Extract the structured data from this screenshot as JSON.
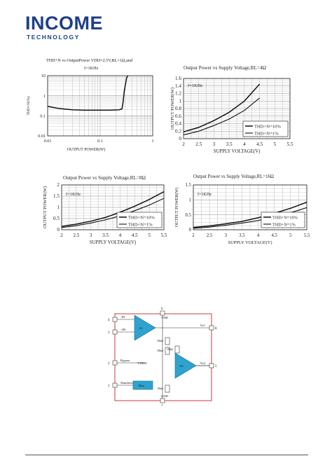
{
  "header": {
    "logo_main": "INCOME",
    "logo_sub": "TECHNOLOGY"
  },
  "chart_data": [
    {
      "type": "line",
      "title_lines": [
        "THD+N vs OutputPower VDD=2.5V,RL=1Ω,and",
        "f=1KHz"
      ],
      "xlabel": "OUTPUT POWER(W)",
      "ylabel": "THD+N(%)",
      "xscale": "log",
      "yscale": "log",
      "xlim": [
        0.01,
        1
      ],
      "ylim": [
        0.01,
        10
      ],
      "xticks": [
        "0.01",
        "0.1",
        "1"
      ],
      "yticks": [
        "10",
        "1",
        "0.1",
        "0.01"
      ],
      "grid": true,
      "series": [
        {
          "x": [
            0.01,
            0.012,
            0.015,
            0.02,
            0.03,
            0.05,
            0.08,
            0.15,
            0.23,
            0.26,
            0.27,
            0.29,
            0.32,
            0.35
          ],
          "y": [
            0.3,
            0.27,
            0.24,
            0.22,
            0.2,
            0.19,
            0.19,
            0.19,
            0.2,
            0.22,
            0.4,
            2.0,
            8.0,
            12.0
          ]
        }
      ]
    },
    {
      "type": "line",
      "title": "Output Power vs Supply Voltage,RL=4Ω",
      "xlabel": "SUPPLY VOLTAGE(V)",
      "ylabel": "OUTPUT POWER(W)",
      "xlim": [
        2,
        5.5
      ],
      "ylim": [
        0,
        1.6
      ],
      "xticks": [
        "2",
        "2.5",
        "3",
        "3.5",
        "4",
        "4.5",
        "5",
        "5.5"
      ],
      "yticks": [
        "1.6",
        "1.4",
        "1.2",
        "1",
        "0.8",
        "0.6",
        "0.4",
        "0.2",
        "0"
      ],
      "annotation": "f=1KHz",
      "grid": true,
      "legend_position": "bottom-right",
      "series": [
        {
          "name": "THD+N=10%",
          "x": [
            2,
            2.5,
            3,
            3.5,
            4,
            4.5
          ],
          "y": [
            0.18,
            0.3,
            0.48,
            0.7,
            1.0,
            1.45
          ]
        },
        {
          "name": "THD+N=1%",
          "x": [
            2,
            2.5,
            3,
            3.5,
            4,
            4.5
          ],
          "y": [
            0.1,
            0.2,
            0.35,
            0.52,
            0.75,
            1.08
          ]
        }
      ]
    },
    {
      "type": "line",
      "title": "Output Power vs Supply Voltage,RL=8Ω",
      "xlabel": "SUPPLY VOLTAGE(V)",
      "ylabel": "OUTPUT POWER(W)",
      "xlim": [
        2,
        5.5
      ],
      "ylim": [
        0,
        2
      ],
      "xticks": [
        "2",
        "2.5",
        "3",
        "3.5",
        "4",
        "4.5",
        "5",
        "5.5"
      ],
      "yticks": [
        "2",
        "1.5",
        "1",
        "0.5",
        "0"
      ],
      "annotation": "f=1KHz",
      "grid": true,
      "legend_position": "bottom-right",
      "series": [
        {
          "name": "THD+N=10%",
          "x": [
            2,
            2.5,
            3,
            3.5,
            4,
            4.5,
            5,
            5.5
          ],
          "y": [
            0.15,
            0.25,
            0.38,
            0.55,
            0.78,
            1.05,
            1.35,
            1.7
          ]
        },
        {
          "name": "THD+N=1%",
          "x": [
            2,
            2.5,
            3,
            3.5,
            4,
            4.5,
            5,
            5.5
          ],
          "y": [
            0.1,
            0.18,
            0.3,
            0.44,
            0.62,
            0.85,
            1.1,
            1.4
          ]
        }
      ]
    },
    {
      "type": "line",
      "title": "Output Power vs Supply Voltage,RL=16Ω",
      "xlabel": "SUPPLY VOLTAGE(V)",
      "ylabel": "OUTPUT POWER(W)",
      "xlim": [
        2,
        5.5
      ],
      "ylim": [
        0,
        1.5
      ],
      "xticks": [
        "2",
        "2.5",
        "3",
        "3.5",
        "4",
        "4.5",
        "5",
        "5.5"
      ],
      "yticks": [
        "1.5",
        "1",
        "0.5",
        "0"
      ],
      "annotation": "f=1KHz",
      "grid": true,
      "legend_position": "bottom-right",
      "series": [
        {
          "name": "THD+N=10%",
          "x": [
            2,
            2.5,
            3,
            3.5,
            4,
            4.5,
            5,
            5.5
          ],
          "y": [
            0.08,
            0.13,
            0.2,
            0.28,
            0.4,
            0.55,
            0.72,
            0.92
          ]
        },
        {
          "name": "THD+N=1%",
          "x": [
            2,
            2.5,
            3,
            3.5,
            4,
            4.5,
            5,
            5.5
          ],
          "y": [
            0.05,
            0.09,
            0.15,
            0.22,
            0.31,
            0.43,
            0.57,
            0.74
          ]
        }
      ]
    }
  ],
  "circuit": {
    "pins": [
      {
        "num": "4",
        "label": "-IN"
      },
      {
        "num": "3",
        "label": "+IN"
      },
      {
        "num": "2",
        "label": "Bypass"
      },
      {
        "num": "1",
        "label": "Shutdown"
      },
      {
        "num": "6",
        "label": "VDD"
      },
      {
        "num": "8",
        "label": "Vo1"
      },
      {
        "num": "5",
        "label": "Vo2"
      },
      {
        "num": "7",
        "label": "GND"
      }
    ],
    "resistor_labels": [
      "50kΩ",
      "50kΩ",
      "10kΩ",
      "10kΩ"
    ],
    "vdd2_label": "VDD/2",
    "bias_label": "Bias",
    "amp_labels": [
      "A1",
      "A2"
    ]
  }
}
